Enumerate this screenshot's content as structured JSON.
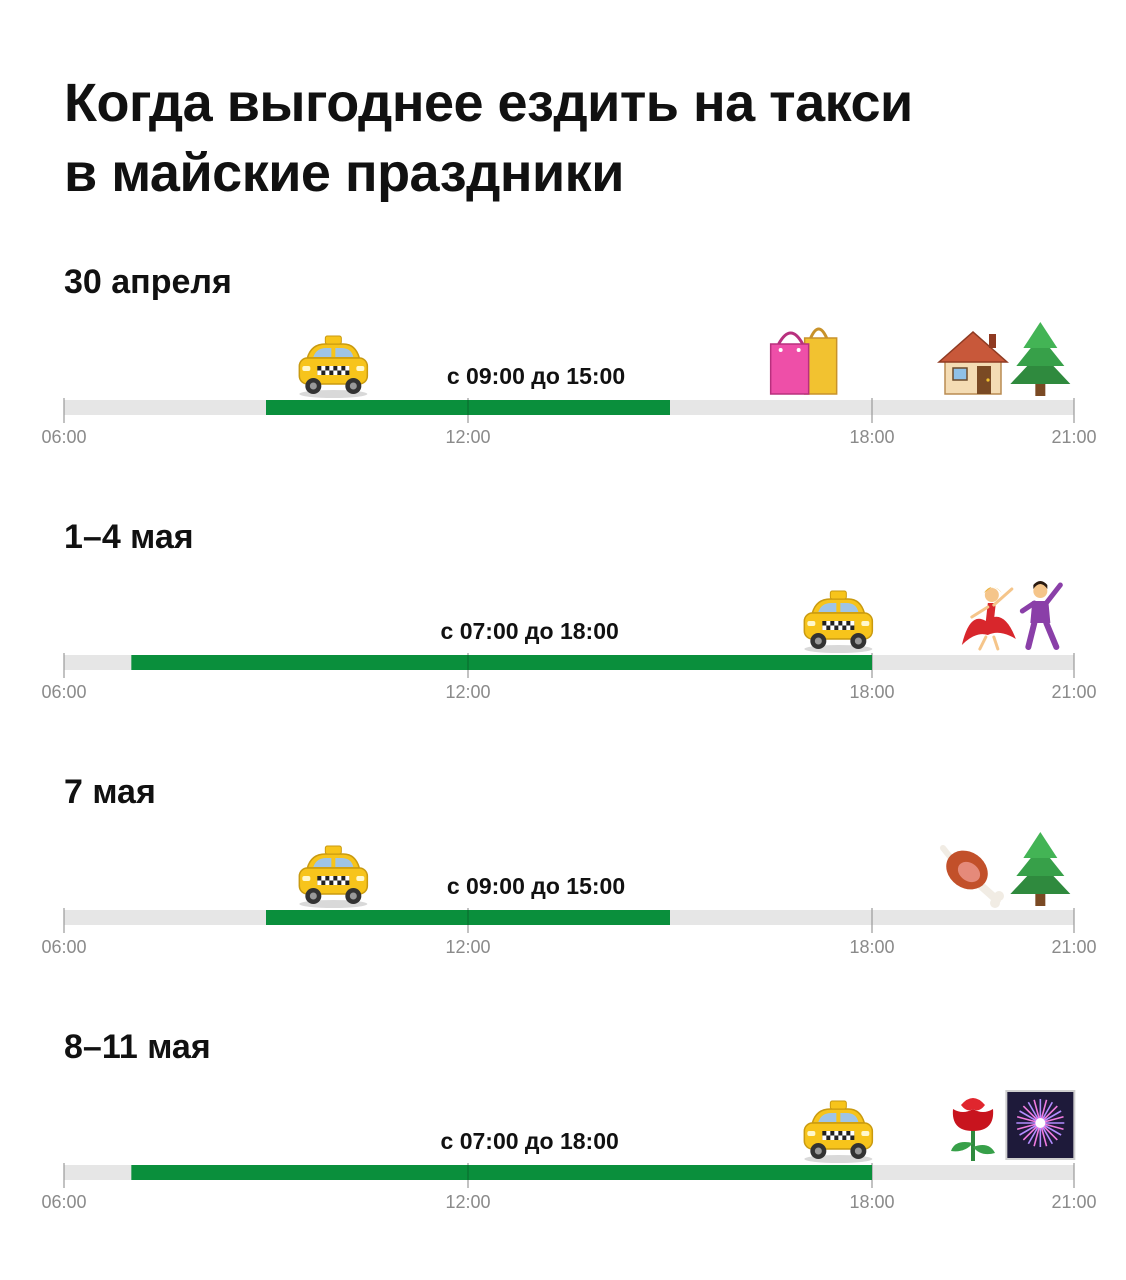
{
  "title": {
    "line1": "Когда выгоднее ездить на такси",
    "line2": "в майские праздники"
  },
  "colors": {
    "track": "#e6e6e6",
    "range": "#0a8f3c",
    "tick": "#9a9a9a",
    "taxi_yellow": "#f7c41b"
  },
  "chart_data": {
    "type": "range_timeline",
    "axis": {
      "min": "06:00",
      "max": "21:00",
      "ticks": [
        "06:00",
        "12:00",
        "18:00",
        "21:00"
      ]
    },
    "rows": [
      {
        "label": "30 апреля",
        "start": "09:00",
        "end": "15:00",
        "range_text": "с 09:00 до 15:00",
        "icons": [
          {
            "name": "taxi-icon",
            "at": "10:00"
          },
          {
            "name": "shopping-bags-icon",
            "at": "17:00"
          },
          {
            "name": "house-icon",
            "at": "19:30"
          },
          {
            "name": "fir-tree-icon",
            "at": "20:30"
          }
        ]
      },
      {
        "label": "1–4 мая",
        "start": "07:00",
        "end": "18:00",
        "range_text": "с 07:00 до 18:00",
        "icons": [
          {
            "name": "taxi-icon",
            "at": "17:30"
          },
          {
            "name": "dancing-woman-icon",
            "at": "19:45"
          },
          {
            "name": "dancing-man-icon",
            "at": "20:30"
          }
        ]
      },
      {
        "label": "7 мая",
        "start": "09:00",
        "end": "15:00",
        "range_text": "с 09:00 до 15:00",
        "icons": [
          {
            "name": "taxi-icon",
            "at": "10:00"
          },
          {
            "name": "meat-on-bone-icon",
            "at": "19:30"
          },
          {
            "name": "fir-tree-icon",
            "at": "20:30"
          }
        ]
      },
      {
        "label": "8–11 мая",
        "start": "07:00",
        "end": "18:00",
        "range_text": "с 07:00 до 18:00",
        "icons": [
          {
            "name": "taxi-icon",
            "at": "17:30"
          },
          {
            "name": "rose-icon",
            "at": "19:30"
          },
          {
            "name": "fireworks-icon",
            "at": "20:30"
          }
        ]
      }
    ]
  }
}
